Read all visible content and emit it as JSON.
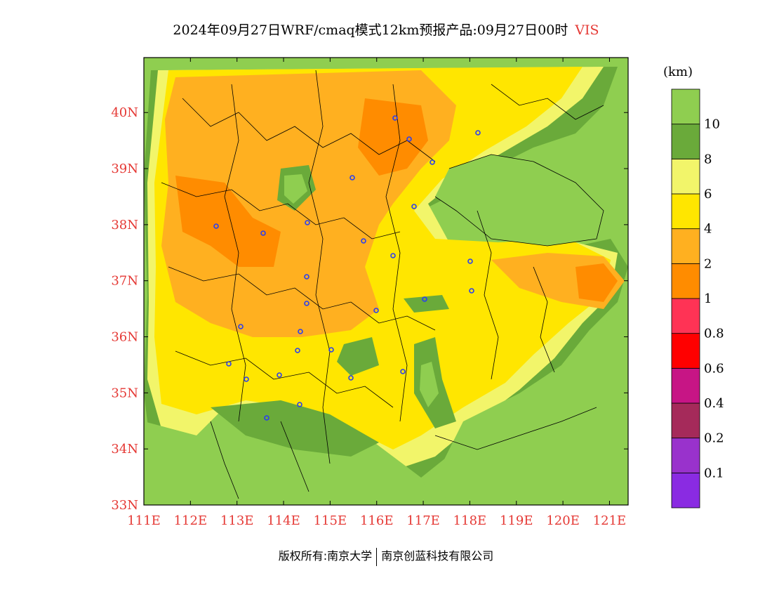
{
  "title": {
    "main": "2024年09月27日WRF/cmaq模式12km预报产品:09月27日00时",
    "variable": "VIS"
  },
  "map": {
    "lon_labels": [
      "111E",
      "112E",
      "113E",
      "114E",
      "115E",
      "116E",
      "117E",
      "118E",
      "119E",
      "120E",
      "121E"
    ],
    "lat_labels": [
      "33N",
      "34N",
      "35N",
      "36N",
      "37N",
      "38N",
      "39N",
      "40N"
    ],
    "lon_range": [
      111,
      121.4
    ],
    "lat_range": [
      33,
      40.98
    ]
  },
  "colorbar": {
    "unit": "(km)",
    "levels": [
      "0.1",
      "0.2",
      "0.4",
      "0.6",
      "0.8",
      "1",
      "2",
      "4",
      "6",
      "8",
      "10"
    ],
    "colors": [
      "#8a2be2",
      "#9932cc",
      "#a52a5a",
      "#c71585",
      "#ff0000",
      "#ff3355",
      "#ff8c00",
      "#ffb020",
      "#ffe600",
      "#f2f56a",
      "#6aaa3a",
      "#8fce50"
    ]
  },
  "footer": {
    "left": "版权所有:南京大学",
    "right": "南京创蓝科技有限公司"
  }
}
